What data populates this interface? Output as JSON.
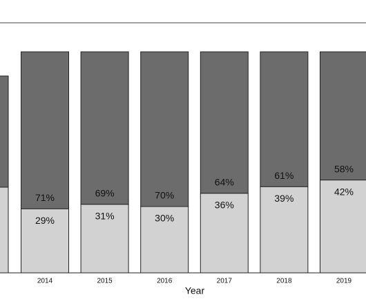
{
  "chart_data": {
    "type": "stacked-bar",
    "x_label": "Year",
    "categories": [
      "2014",
      "2015",
      "2016",
      "2017",
      "2018",
      "2019"
    ],
    "series": [
      {
        "color": "#d2d2d2",
        "values": [
          29,
          31,
          30,
          36,
          39,
          42
        ],
        "value_labels": [
          "29%",
          "31%",
          "30%",
          "36%",
          "39%",
          "42%"
        ]
      },
      {
        "color": "#6c6c6c",
        "values": [
          71,
          69,
          70,
          64,
          61,
          58
        ],
        "value_labels": [
          "71%",
          "69%",
          "70%",
          "64%",
          "61%",
          "58%"
        ]
      }
    ]
  }
}
